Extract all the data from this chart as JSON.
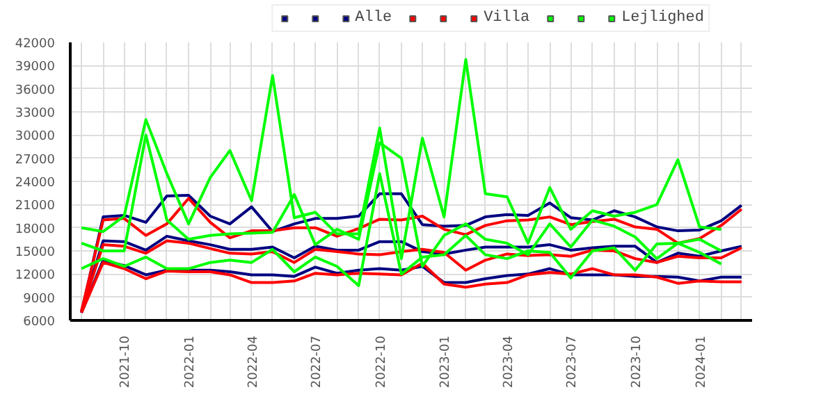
{
  "chart_data": {
    "type": "line",
    "x": [
      "2021-08",
      "2021-09",
      "2021-10",
      "2021-11",
      "2021-12",
      "2022-01",
      "2022-02",
      "2022-03",
      "2022-04",
      "2022-05",
      "2022-06",
      "2022-07",
      "2022-08",
      "2022-09",
      "2022-10",
      "2022-11",
      "2022-12",
      "2023-01",
      "2023-02",
      "2023-03",
      "2023-04",
      "2023-05",
      "2023-06",
      "2023-07",
      "2023-08",
      "2023-09",
      "2023-10",
      "2023-11",
      "2023-12",
      "2024-01",
      "2024-02",
      "2024-03"
    ],
    "series": [
      {
        "color": "#000080",
        "values": [
          7000,
          13800,
          13100,
          11900,
          12500,
          12500,
          12500,
          12300,
          11900,
          11900,
          11700,
          12900,
          12100,
          12500,
          12700,
          12500,
          13000,
          10900,
          10900,
          11400,
          11800,
          12000,
          12700,
          11900,
          11900,
          11900,
          11700,
          11700,
          11600,
          11100,
          11600,
          11600
        ]
      },
      {
        "color": "#000080",
        "values": [
          7200,
          16300,
          16200,
          15100,
          16900,
          16300,
          15800,
          15200,
          15200,
          15500,
          14100,
          15600,
          15100,
          15100,
          16200,
          16200,
          14900,
          14600,
          15100,
          15500,
          15500,
          15500,
          15800,
          15100,
          15400,
          15600,
          15600,
          13500,
          14700,
          14300,
          15000,
          15600
        ]
      },
      {
        "name": "Alle",
        "color": "#000080",
        "values": [
          7000,
          19400,
          19600,
          18700,
          22100,
          22200,
          19500,
          18500,
          20700,
          17500,
          18500,
          19200,
          19200,
          19500,
          22400,
          22400,
          18400,
          18200,
          18300,
          19400,
          19700,
          19600,
          21200,
          19300,
          19000,
          20200,
          19400,
          18100,
          17600,
          17700,
          18900,
          20900
        ]
      },
      {
        "color": "#ff0000",
        "values": [
          7000,
          13500,
          12700,
          11400,
          12400,
          12300,
          12300,
          11900,
          10900,
          10900,
          11100,
          12100,
          11900,
          12100,
          12000,
          11900,
          13400,
          10700,
          10300,
          10700,
          10900,
          11900,
          12200,
          12000,
          12700,
          11900,
          11900,
          11600,
          10800,
          11100,
          11000,
          11000
        ]
      },
      {
        "color": "#ff0000",
        "values": [
          7200,
          15800,
          15600,
          14700,
          16300,
          16000,
          15300,
          14700,
          14600,
          14900,
          13500,
          15200,
          14900,
          14600,
          14500,
          14900,
          15200,
          14800,
          12500,
          13800,
          14600,
          14400,
          14500,
          14300,
          15100,
          15000,
          14000,
          13500,
          14300,
          14100,
          14100,
          15400
        ]
      },
      {
        "name": "Villa",
        "color": "#ff0000",
        "values": [
          7200,
          19000,
          19200,
          17000,
          18500,
          21800,
          18700,
          16700,
          17600,
          17600,
          18000,
          18000,
          16900,
          17900,
          19100,
          19000,
          19500,
          17800,
          17100,
          18300,
          18900,
          19000,
          19400,
          18400,
          18800,
          19100,
          18100,
          17800,
          16000,
          16600,
          18300,
          20400
        ]
      },
      {
        "color": "#00ff00",
        "values": [
          12700,
          14000,
          13000,
          14200,
          12700,
          12700,
          13500,
          13800,
          13500,
          15200,
          12300,
          14200,
          13000,
          10500,
          25000,
          12000,
          14200,
          14500,
          17000,
          14500,
          14000,
          15000,
          14800,
          11500,
          15000,
          15400,
          12500,
          15900,
          16000,
          14800,
          13300,
          null
        ]
      },
      {
        "color": "#00ff00",
        "values": [
          16000,
          15000,
          15000,
          30000,
          19000,
          16500,
          17000,
          17200,
          17300,
          17400,
          22300,
          15800,
          17800,
          16500,
          29000,
          27000,
          13000,
          17000,
          18500,
          16500,
          16000,
          14500,
          18500,
          15500,
          19000,
          18200,
          16800,
          14000,
          16000,
          16500,
          15000,
          null
        ]
      },
      {
        "name": "Lejlighed",
        "color": "#00ff00",
        "values": [
          18000,
          17500,
          19500,
          32000,
          25000,
          18500,
          24500,
          28000,
          21500,
          37700,
          19300,
          20000,
          17200,
          17200,
          30900,
          14000,
          29600,
          19400,
          39800,
          22400,
          22000,
          16000,
          23200,
          17800,
          20200,
          19500,
          20000,
          21000,
          26800,
          18100,
          17800,
          null
        ]
      }
    ],
    "xlim": [
      "2021-07-16",
      "2024-03-16"
    ],
    "xticks": [
      {
        "value": "2021-08",
        "label": null
      },
      {
        "value": "2021-09",
        "label": null
      },
      {
        "value": "2021-10",
        "label": "2021-10"
      },
      {
        "value": "2021-11",
        "label": null
      },
      {
        "value": "2021-12",
        "label": null
      },
      {
        "value": "2022-01",
        "label": "2022-01"
      },
      {
        "value": "2022-02",
        "label": null
      },
      {
        "value": "2022-03",
        "label": null
      },
      {
        "value": "2022-04",
        "label": "2022-04"
      },
      {
        "value": "2022-05",
        "label": null
      },
      {
        "value": "2022-06",
        "label": null
      },
      {
        "value": "2022-07",
        "label": "2022-07"
      },
      {
        "value": "2022-08",
        "label": null
      },
      {
        "value": "2022-09",
        "label": null
      },
      {
        "value": "2022-10",
        "label": "2022-10"
      },
      {
        "value": "2022-11",
        "label": null
      },
      {
        "value": "2022-12",
        "label": null
      },
      {
        "value": "2023-01",
        "label": "2023-01"
      },
      {
        "value": "2023-02",
        "label": null
      },
      {
        "value": "2023-03",
        "label": null
      },
      {
        "value": "2023-04",
        "label": "2023-04"
      },
      {
        "value": "2023-05",
        "label": null
      },
      {
        "value": "2023-06",
        "label": null
      },
      {
        "value": "2023-07",
        "label": "2023-07"
      },
      {
        "value": "2023-08",
        "label": null
      },
      {
        "value": "2023-09",
        "label": null
      },
      {
        "value": "2023-10",
        "label": "2023-10"
      },
      {
        "value": "2023-11",
        "label": null
      },
      {
        "value": "2023-12",
        "label": null
      },
      {
        "value": "2024-01",
        "label": "2024-01"
      },
      {
        "value": "2024-02",
        "label": null
      },
      {
        "value": "2024-03",
        "label": null
      }
    ],
    "ylim": [
      6000,
      42000
    ],
    "yticks": [
      6000,
      9000,
      12000,
      15000,
      18000,
      21000,
      24000,
      27000,
      30000,
      33000,
      36000,
      39000,
      42000
    ],
    "grid": true,
    "legend": "top right",
    "marker": "none",
    "line_style": "solid"
  }
}
